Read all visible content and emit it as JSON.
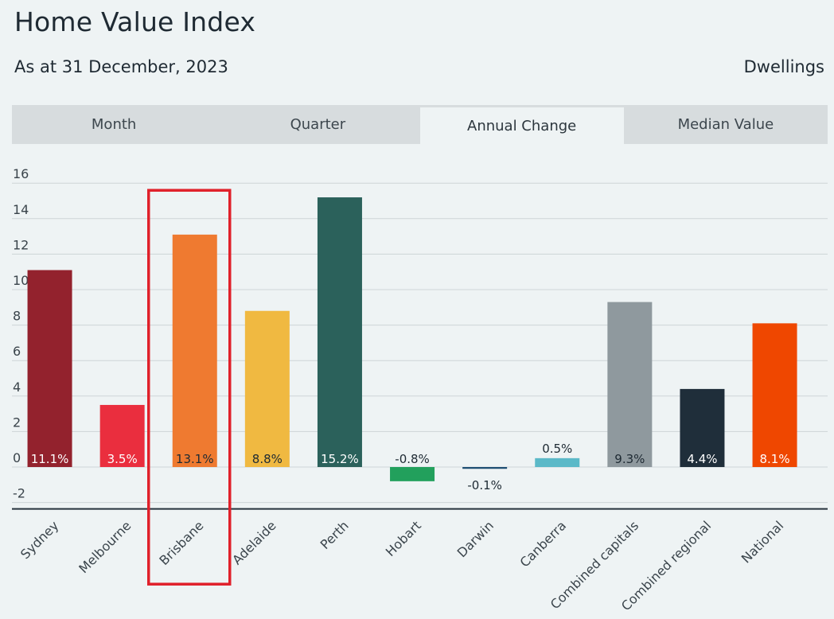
{
  "header": {
    "title": "Home Value Index",
    "subtitle": "As at 31 December, 2023",
    "dwelling_type": "Dwellings"
  },
  "tabs": [
    {
      "label": "Month"
    },
    {
      "label": "Quarter"
    },
    {
      "label": "Annual Change",
      "active": true
    },
    {
      "label": "Median Value"
    }
  ],
  "chart_data": {
    "type": "bar",
    "title": "",
    "xlabel": "",
    "ylabel": "",
    "ylim": [
      -2,
      16
    ],
    "yticks": [
      -2,
      0,
      2,
      4,
      6,
      8,
      10,
      12,
      14,
      16
    ],
    "grid": true,
    "categories": [
      "Sydney",
      "Melbourne",
      "Brisbane",
      "Adelaide",
      "Perth",
      "Hobart",
      "Darwin",
      "Canberra",
      "Combined capitals",
      "Combined regional",
      "National"
    ],
    "values": [
      11.1,
      3.5,
      13.1,
      8.8,
      15.2,
      -0.8,
      -0.1,
      0.5,
      9.3,
      4.4,
      8.1
    ],
    "data_labels": [
      "11.1%",
      "3.5%",
      "13.1%",
      "8.8%",
      "15.2%",
      "-0.8%",
      "-0.1%",
      "0.5%",
      "9.3%",
      "4.4%",
      "8.1%"
    ],
    "colors": [
      "#93222d",
      "#ea2e3e",
      "#ef7a30",
      "#f0b941",
      "#2b615b",
      "#22a05c",
      "#1e4f73",
      "#5bb9c8",
      "#8f999e",
      "#1f2e3a",
      "#ef4700"
    ],
    "label_colors": [
      "#ffffff",
      "#ffffff",
      "#1e2a33",
      "#1e2a33",
      "#ffffff",
      "#1e2a33",
      "#1e2a33",
      "#1e2a33",
      "#1e2a33",
      "#ffffff",
      "#ffffff"
    ],
    "highlight_category": "Brisbane",
    "highlight_color": "#e0202a"
  }
}
